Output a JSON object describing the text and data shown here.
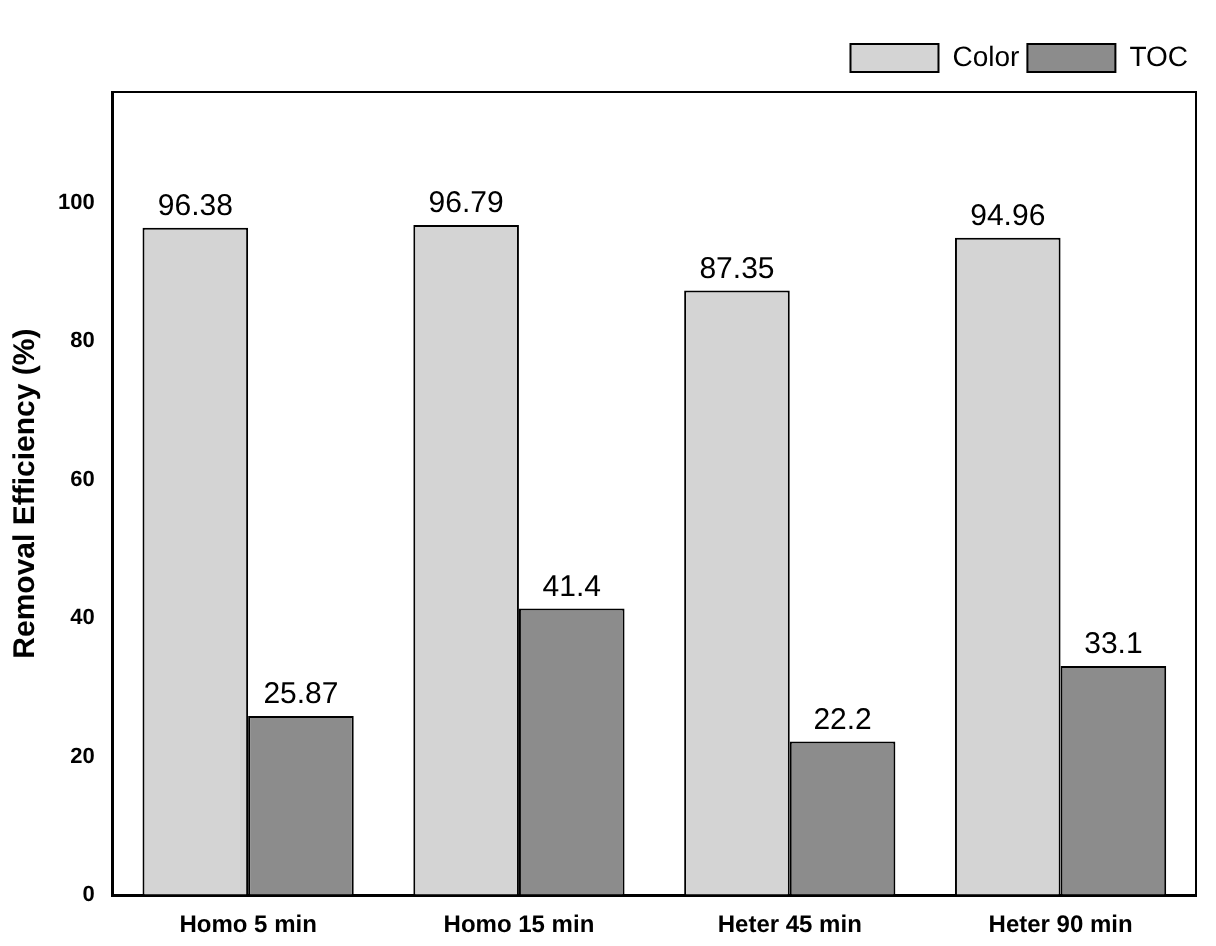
{
  "chart_data": {
    "type": "bar",
    "ylabel": "Removal Efficiency (%)",
    "categories": [
      "Homo 5 min",
      "Homo 15 min",
      "Heter 45 min",
      "Heter 90 min"
    ],
    "series": [
      {
        "name": "Color",
        "color": "#d4d4d4",
        "values": [
          96.38,
          96.79,
          87.35,
          94.96
        ]
      },
      {
        "name": "TOC",
        "color": "#8c8c8c",
        "values": [
          25.87,
          41.4,
          22.2,
          33.1
        ]
      }
    ],
    "ylim": [
      0,
      116
    ],
    "yticks": [
      0,
      20,
      40,
      60,
      80,
      100
    ],
    "grid": false,
    "legend": "top right",
    "data_labels": true
  }
}
